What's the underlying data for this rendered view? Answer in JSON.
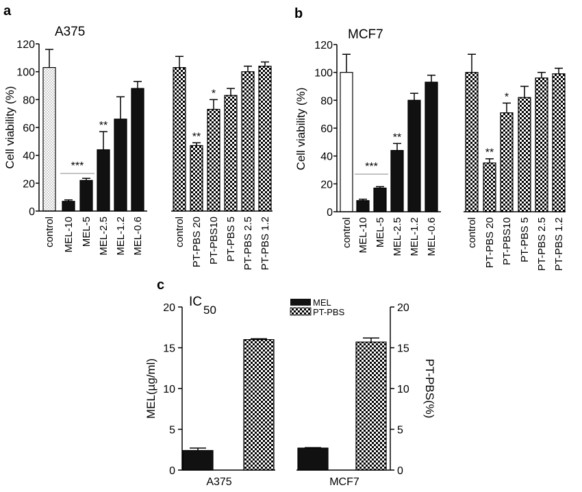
{
  "panels": {
    "a": "a",
    "b": "b",
    "c": "c"
  },
  "colors": {
    "mel": "#111111",
    "control_a": "dots",
    "pt_pbs": "checker"
  },
  "chart_data": [
    {
      "id": "a",
      "type": "bar",
      "title": "A375",
      "ylabel": "Cell viability (%)",
      "ylim": [
        0,
        120
      ],
      "yticks": [
        "0",
        "20",
        "40",
        "60",
        "80",
        "100",
        "120"
      ],
      "groups": [
        {
          "categories": [
            "control",
            "MEL-10",
            "MEL-5",
            "MEL-2.5",
            "MEL-1.2",
            "MEL-0.6"
          ],
          "values": [
            103,
            7,
            22,
            44,
            66,
            88
          ],
          "errors": [
            13,
            1,
            1.5,
            13,
            16,
            5
          ],
          "patterns": [
            "dots",
            "solid",
            "solid",
            "solid",
            "solid",
            "solid"
          ],
          "sig": [
            "",
            "",
            "",
            "**",
            "",
            ""
          ],
          "sig_bracket": {
            "label": "***",
            "from": 1,
            "to": 2
          }
        },
        {
          "categories": [
            "control",
            "PT-PBS 20",
            "PT-PBS10",
            "PT-PBS 5",
            "PT-PBS 2.5",
            "PT-PBS 1.2"
          ],
          "values": [
            103,
            47,
            73,
            83,
            100,
            104
          ],
          "errors": [
            8,
            2,
            7,
            5,
            4,
            3
          ],
          "patterns": [
            "checker",
            "checker",
            "checker",
            "checker",
            "checker",
            "checker"
          ],
          "sig": [
            "",
            "**",
            "*",
            "",
            "",
            ""
          ]
        }
      ]
    },
    {
      "id": "b",
      "type": "bar",
      "title": "MCF7",
      "ylabel": "Cell viability (%)",
      "ylim": [
        0,
        120
      ],
      "yticks": [
        "0",
        "20",
        "40",
        "60",
        "80",
        "100",
        "120"
      ],
      "groups": [
        {
          "categories": [
            "control",
            "MEL-10",
            "MEL-5",
            "MEL-2.5",
            "MEL-1.2",
            "MEL-0.6"
          ],
          "values": [
            100,
            8,
            17,
            44,
            80,
            93
          ],
          "errors": [
            13,
            1,
            1,
            5,
            5,
            5
          ],
          "patterns": [
            "white",
            "solid",
            "solid",
            "solid",
            "solid",
            "solid"
          ],
          "sig": [
            "",
            "",
            "",
            "**",
            "",
            ""
          ],
          "sig_bracket": {
            "label": "***",
            "from": 1,
            "to": 2
          }
        },
        {
          "categories": [
            "control",
            "PT-PBS 20",
            "PT-PBS10",
            "PT-PBS 5",
            "PT-PBS 2.5",
            "PT-PBS 1.2"
          ],
          "values": [
            100,
            35,
            71,
            82,
            96,
            99
          ],
          "errors": [
            13,
            3,
            7,
            8,
            4,
            4
          ],
          "patterns": [
            "checker",
            "checker",
            "checker",
            "checker",
            "checker",
            "checker"
          ],
          "sig": [
            "",
            "**",
            "*",
            "",
            "",
            ""
          ]
        }
      ]
    },
    {
      "id": "c",
      "type": "bar",
      "title": "IC",
      "title_sub": "50",
      "ylabel_left": "MEL(µg/ml)",
      "ylabel_right": "PT-PBS(%)",
      "ylim": [
        0,
        20
      ],
      "yticks": [
        "0",
        "5",
        "10",
        "15",
        "20"
      ],
      "legend": [
        {
          "name": "MEL",
          "pattern": "solid"
        },
        {
          "name": "PT-PBS",
          "pattern": "checker"
        }
      ],
      "categories": [
        "A375",
        "MCF7"
      ],
      "series": [
        {
          "name": "MEL",
          "values": [
            2.4,
            2.7
          ],
          "errors": [
            0.3,
            0.05
          ]
        },
        {
          "name": "PT-PBS",
          "values": [
            16.0,
            15.7
          ],
          "errors": [
            0.1,
            0.5
          ]
        }
      ]
    }
  ]
}
